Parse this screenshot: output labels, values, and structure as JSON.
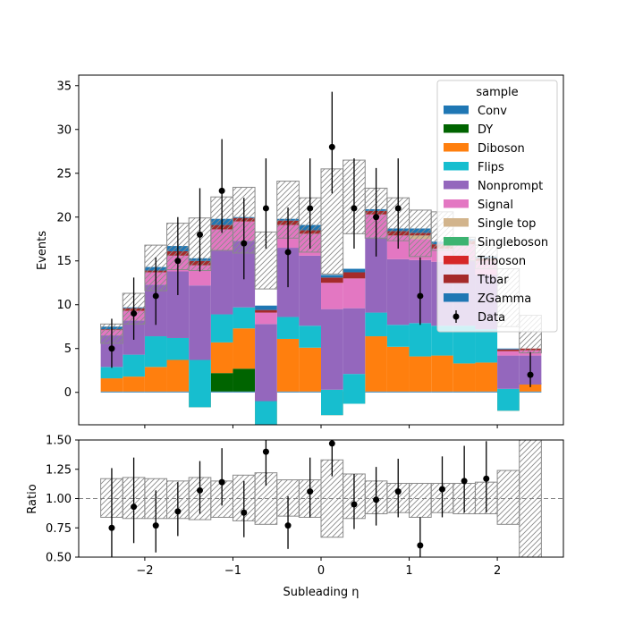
{
  "chart_data": [
    {
      "type": "bar",
      "subtype": "stacked-histogram-with-data",
      "xlabel": "",
      "ylabel": "Events",
      "xlim": [
        -2.75,
        2.75
      ],
      "ylim": [
        -3.7,
        36.2
      ],
      "xticks": [
        -2,
        -1,
        0,
        1,
        2
      ],
      "xtick_labels": [
        "−2",
        "−1",
        "0",
        "1",
        "2"
      ],
      "show_xtick_labels": false,
      "yticks": [
        0,
        5,
        10,
        15,
        20,
        25,
        30,
        35
      ],
      "ytick_labels": [
        "0",
        "5",
        "10",
        "15",
        "20",
        "25",
        "30",
        "35"
      ],
      "bin_edges": [
        -2.5,
        -2.25,
        -2.0,
        -1.75,
        -1.5,
        -1.25,
        -1.0,
        -0.75,
        -0.5,
        -0.25,
        0.0,
        0.25,
        0.5,
        0.75,
        1.0,
        1.25,
        1.5,
        1.75,
        2.0,
        2.25,
        2.5
      ],
      "legend_title": "sample",
      "legend_position": "top-right",
      "series": [
        {
          "name": "Conv",
          "color": "#1f77b4",
          "values": [
            0.1,
            0.1,
            0.1,
            0.1,
            0.1,
            0.1,
            0.1,
            0,
            0.1,
            0.1,
            0.1,
            0.1,
            0.1,
            0.1,
            0.1,
            0.1,
            0.1,
            0.1,
            0.1,
            0.1
          ]
        },
        {
          "name": "DY",
          "color": "#006400",
          "values": [
            0,
            0,
            0,
            0,
            0,
            2.1,
            2.6,
            0,
            0,
            0,
            0,
            0,
            0,
            0,
            0,
            0,
            0,
            0,
            0,
            0
          ]
        },
        {
          "name": "Diboson",
          "color": "#ff7f0e",
          "values": [
            1.5,
            1.7,
            2.8,
            3.6,
            -1.8,
            3.5,
            4.6,
            -3.7,
            6.0,
            5.0,
            -2.7,
            -1.4,
            6.3,
            5.1,
            4.0,
            4.1,
            3.2,
            3.3,
            -2.2,
            1.0
          ]
        },
        {
          "name": "Flips",
          "color": "#17becf",
          "values": [
            1.3,
            2.5,
            3.5,
            2.5,
            5.4,
            3.2,
            2.4,
            2.7,
            2.5,
            2.5,
            2.9,
            3.4,
            2.7,
            2.5,
            3.8,
            3.4,
            4.3,
            3.8,
            2.5,
            -0.2
          ]
        },
        {
          "name": "Nonprompt",
          "color": "#9467bd",
          "values": [
            3.6,
            3.9,
            5.9,
            7.6,
            8.5,
            7.3,
            7.6,
            8.8,
            7.9,
            8.0,
            9.2,
            7.5,
            8.6,
            7.5,
            7.2,
            7.3,
            7.5,
            6.2,
            3.8,
            3.3
          ]
        },
        {
          "name": "Signal",
          "color": "#e377c2",
          "values": [
            0.6,
            1.1,
            1.4,
            1.8,
            2.3,
            2.4,
            2.2,
            1.3,
            2.6,
            2.5,
            3.0,
            3.4,
            2.6,
            2.7,
            2.4,
            1.5,
            1.8,
            1.6,
            0.5,
            0.6
          ]
        },
        {
          "name": "Single top",
          "color": "#d2b48c",
          "values": [
            0,
            0,
            0,
            0,
            0,
            0,
            0,
            0,
            0,
            0,
            0,
            0,
            0,
            0,
            0.4,
            0,
            0,
            0,
            0,
            0
          ]
        },
        {
          "name": "Singleboson",
          "color": "#3cb371",
          "values": [
            0,
            0,
            0,
            0,
            0,
            0,
            0,
            0,
            0,
            0,
            0,
            0,
            0,
            0,
            0,
            0,
            0,
            0,
            0,
            0
          ]
        },
        {
          "name": "Triboson",
          "color": "#d62728",
          "values": [
            0,
            0,
            0,
            0,
            0,
            0,
            0,
            0,
            0,
            0,
            0,
            0,
            0,
            0,
            0,
            0,
            0,
            0,
            0,
            0
          ]
        },
        {
          "name": "Ttbar",
          "color": "#a52a2a",
          "values": [
            0.1,
            0.3,
            0.2,
            0.5,
            0.5,
            0.5,
            0.4,
            0.3,
            0.5,
            0.4,
            0.6,
            0.7,
            0.4,
            0.5,
            0.3,
            0.5,
            0.4,
            0.3,
            0.2,
            0.2
          ]
        },
        {
          "name": "ZGamma",
          "color": "#1f77b4",
          "values": [
            0.3,
            0.1,
            0.4,
            0.6,
            0.3,
            0.7,
            0.1,
            0.5,
            0.2,
            0.6,
            0.3,
            0.4,
            0.2,
            0.3,
            0.5,
            0.3,
            0.2,
            0.2,
            0.1,
            0
          ]
        }
      ],
      "uncertainty": {
        "up": [
          7.8,
          11.3,
          16.8,
          19.3,
          19.9,
          22.3,
          23.4,
          18.3,
          24.1,
          22.2,
          25.5,
          26.5,
          23.3,
          22.2,
          20.8,
          20.6,
          17.7,
          16.8,
          14.1,
          8.8
        ],
        "down": [
          5.6,
          7.8,
          11.6,
          14.0,
          13.9,
          16.2,
          15.9,
          11.8,
          17.6,
          16.0,
          13.5,
          18.1,
          17.6,
          17.3,
          15.5,
          16.2,
          15.0,
          14.1,
          7.5,
          4.5
        ]
      },
      "data": {
        "name": "Data",
        "x": [
          -2.375,
          -2.125,
          -1.875,
          -1.625,
          -1.375,
          -1.125,
          -0.875,
          -0.625,
          -0.375,
          -0.125,
          0.125,
          0.375,
          0.625,
          0.875,
          1.125,
          1.375,
          1.625,
          1.875,
          2.125,
          2.375
        ],
        "y": [
          5,
          9,
          11,
          15,
          18,
          23,
          17,
          21,
          16,
          21,
          28,
          21,
          20,
          21,
          11,
          null,
          null,
          null,
          null,
          2
        ],
        "err_low": [
          2.2,
          3.0,
          3.3,
          3.9,
          4.2,
          4.8,
          4.1,
          4.6,
          4.0,
          4.6,
          5.3,
          4.6,
          4.5,
          4.6,
          3.3,
          null,
          null,
          null,
          null,
          1.4
        ],
        "err_high": [
          3.4,
          4.1,
          4.4,
          5.0,
          5.3,
          5.9,
          5.2,
          5.7,
          5.1,
          5.7,
          6.3,
          5.7,
          5.6,
          5.7,
          4.4,
          null,
          null,
          null,
          null,
          2.6
        ]
      }
    },
    {
      "type": "scatter",
      "subtype": "ratio",
      "xlabel": "Subleading η",
      "ylabel": "Ratio",
      "xlim": [
        -2.75,
        2.75
      ],
      "ylim": [
        0.5,
        1.5
      ],
      "xticks": [
        -2,
        -1,
        0,
        1,
        2
      ],
      "xtick_labels": [
        "−2",
        "−1",
        "0",
        "1",
        "2"
      ],
      "yticks": [
        0.5,
        0.75,
        1.0,
        1.25,
        1.5
      ],
      "ytick_labels": [
        "0.50",
        "0.75",
        "1.00",
        "1.25",
        "1.50"
      ],
      "reference_line": 1.0,
      "uncertainty": {
        "up": [
          1.17,
          1.18,
          1.17,
          1.15,
          1.18,
          1.15,
          1.2,
          1.22,
          1.16,
          1.16,
          1.33,
          1.21,
          1.15,
          1.13,
          1.13,
          1.13,
          1.13,
          1.14,
          1.24,
          1.5
        ],
        "down": [
          0.84,
          0.83,
          0.83,
          0.83,
          0.82,
          0.84,
          0.81,
          0.78,
          0.85,
          0.84,
          0.67,
          0.83,
          0.87,
          0.88,
          0.84,
          0.88,
          0.87,
          0.87,
          0.78,
          0.5
        ]
      },
      "points": {
        "x": [
          -2.375,
          -2.125,
          -1.875,
          -1.625,
          -1.375,
          -1.125,
          -0.875,
          -0.625,
          -0.375,
          -0.125,
          0.125,
          0.375,
          0.625,
          0.875,
          1.125,
          1.375,
          1.625,
          1.875,
          2.125,
          2.375
        ],
        "y": [
          0.75,
          0.93,
          0.77,
          0.89,
          1.07,
          1.14,
          0.88,
          1.4,
          0.77,
          1.06,
          1.47,
          0.95,
          0.99,
          1.06,
          0.6,
          1.08,
          1.15,
          1.17,
          null,
          null
        ],
        "err_low": [
          0.33,
          0.31,
          0.23,
          0.21,
          0.2,
          0.2,
          0.21,
          0.29,
          0.2,
          0.22,
          0.28,
          0.21,
          0.22,
          0.22,
          0.18,
          0.24,
          0.27,
          0.29,
          null,
          null
        ],
        "err_high": [
          0.51,
          0.42,
          0.3,
          0.25,
          0.25,
          0.29,
          0.27,
          0.36,
          0.25,
          0.29,
          0.33,
          0.26,
          0.28,
          0.28,
          0.24,
          0.28,
          0.3,
          0.32,
          null,
          null
        ]
      }
    }
  ]
}
